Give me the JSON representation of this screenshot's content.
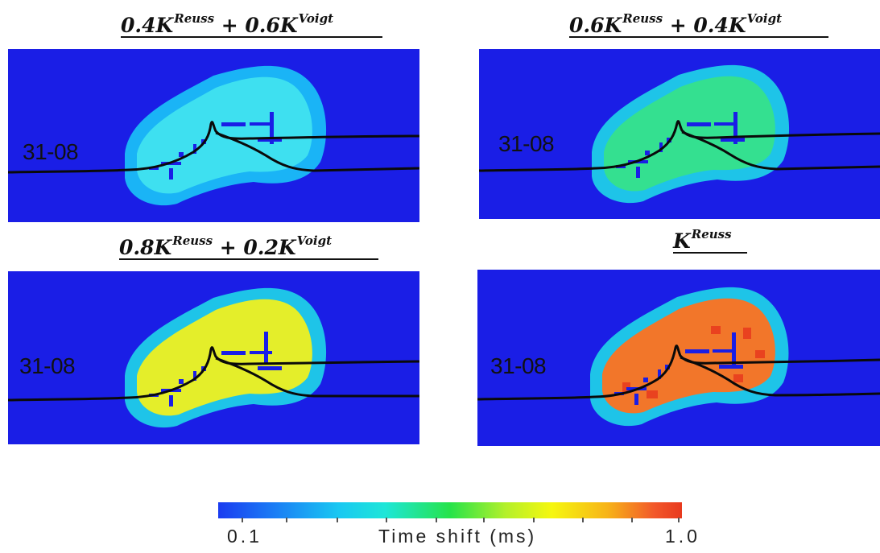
{
  "panels": [
    {
      "title_a": "0.4K",
      "sup_a": "Reuss",
      "title_b": "+ 0.6K",
      "sup_b": "Voigt",
      "well_label": "31-08",
      "fill_color": "#3ee0f0",
      "rim_color": "#1ab4f6"
    },
    {
      "title_a": "0.6K",
      "sup_a": "Reuss",
      "title_b": "+ 0.4K",
      "sup_b": "Voigt",
      "well_label": "31-08",
      "fill_color": "#34e090",
      "rim_color": "#1ec4e8"
    },
    {
      "title_a": "0.8K",
      "sup_a": "Reuss",
      "title_b": "+ 0.2K",
      "sup_b": "Voigt",
      "well_label": "31-08",
      "fill_color": "#e4ee2a",
      "rim_color": "#1ec4e8"
    },
    {
      "title_a": "K",
      "sup_a": "Reuss",
      "title_b": "",
      "sup_b": "",
      "well_label": "31-08",
      "fill_color": "#f2762a",
      "rim_color": "#1ec4e8"
    }
  ],
  "colorbar": {
    "min_label": "0.1",
    "max_label": "1.0",
    "label": "Time shift (ms)",
    "colors": [
      "#1a3cf0",
      "#19c8f2",
      "#26e34a",
      "#f6f70f",
      "#e8391e"
    ]
  }
}
